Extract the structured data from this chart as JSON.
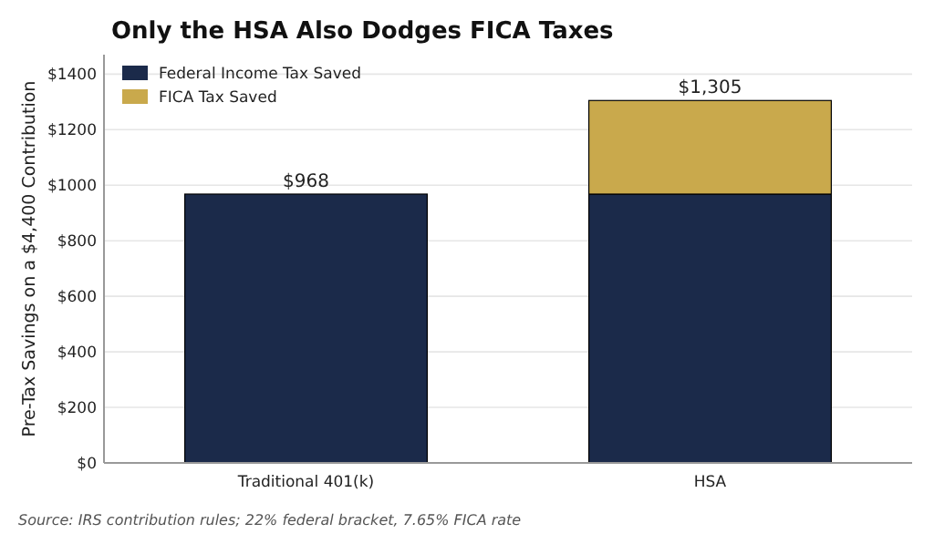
{
  "chart_data": {
    "type": "bar",
    "title": "Only the HSA Also Dodges FICA Taxes",
    "ylabel": "Pre-Tax Savings on a $4,400 Contribution",
    "categories": [
      "Traditional 401(k)",
      "HSA"
    ],
    "stacked": true,
    "series": [
      {
        "name": "Federal Income Tax Saved",
        "color": "#1b2a4a",
        "values": [
          968,
          968
        ]
      },
      {
        "name": "FICA Tax Saved",
        "color": "#c9a94c",
        "values": [
          null,
          337
        ]
      }
    ],
    "totals": [
      "$968",
      "$1,305"
    ],
    "ylim": [
      0,
      1470
    ],
    "yticks": [
      {
        "value": 0,
        "label": "$0"
      },
      {
        "value": 200,
        "label": "$200"
      },
      {
        "value": 400,
        "label": "$400"
      },
      {
        "value": 600,
        "label": "$600"
      },
      {
        "value": 800,
        "label": "$800"
      },
      {
        "value": 1000,
        "label": "$1000"
      },
      {
        "value": 1200,
        "label": "$1200"
      },
      {
        "value": 1400,
        "label": "$1400"
      }
    ],
    "grid": "y",
    "legend": "top left",
    "annotations": [
      "Source: IRS contribution rules; 22% federal bracket, 7.65% FICA rate"
    ]
  }
}
